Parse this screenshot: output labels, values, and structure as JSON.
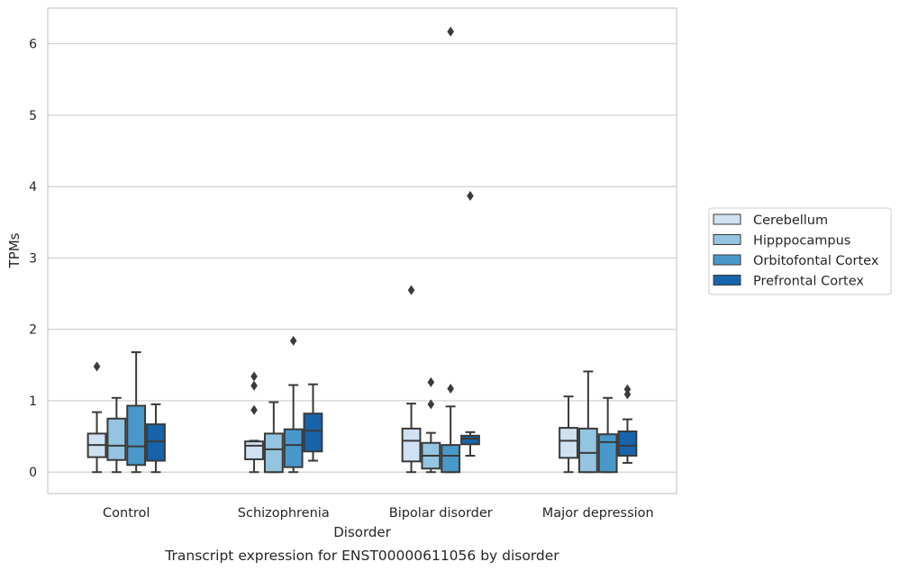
{
  "chart_data": {
    "type": "box",
    "title": "Transcript expression for ENST00000611056 by disorder",
    "xlabel": "Disorder",
    "ylabel": "TPMs",
    "ylim": [
      -0.3,
      6.5
    ],
    "yticks": [
      0,
      1,
      2,
      3,
      4,
      5,
      6
    ],
    "grid": "horizontal",
    "legend_position": "right-outside",
    "categories": [
      "Control",
      "Schizophrenia",
      "Bipolar disorder",
      "Major depression"
    ],
    "series": [
      {
        "name": "Cerebellum",
        "color": "#d0e1f2",
        "boxes": [
          {
            "whisker_low": 0.0,
            "q1": 0.21,
            "median": 0.38,
            "q3": 0.54,
            "whisker_high": 0.84,
            "outliers": [
              1.48
            ]
          },
          {
            "whisker_low": 0.0,
            "q1": 0.18,
            "median": 0.37,
            "q3": 0.43,
            "whisker_high": 0.44,
            "outliers": [
              0.87,
              1.21,
              1.34
            ]
          },
          {
            "whisker_low": 0.0,
            "q1": 0.15,
            "median": 0.44,
            "q3": 0.61,
            "whisker_high": 0.96,
            "outliers": [
              2.55
            ]
          },
          {
            "whisker_low": 0.0,
            "q1": 0.2,
            "median": 0.44,
            "q3": 0.62,
            "whisker_high": 1.06,
            "outliers": []
          }
        ]
      },
      {
        "name": "Hipppocampus",
        "color": "#94c4df",
        "boxes": [
          {
            "whisker_low": 0.0,
            "q1": 0.17,
            "median": 0.37,
            "q3": 0.75,
            "whisker_high": 1.04,
            "outliers": []
          },
          {
            "whisker_low": 0.0,
            "q1": 0.0,
            "median": 0.32,
            "q3": 0.54,
            "whisker_high": 0.98,
            "outliers": []
          },
          {
            "whisker_low": 0.0,
            "q1": 0.05,
            "median": 0.23,
            "q3": 0.41,
            "whisker_high": 0.55,
            "outliers": [
              0.95,
              1.26
            ]
          },
          {
            "whisker_low": 0.0,
            "q1": 0.0,
            "median": 0.27,
            "q3": 0.61,
            "whisker_high": 1.41,
            "outliers": []
          }
        ]
      },
      {
        "name": "Orbitofontal Cortex",
        "color": "#4a98c9",
        "boxes": [
          {
            "whisker_low": 0.0,
            "q1": 0.1,
            "median": 0.36,
            "q3": 0.93,
            "whisker_high": 1.68,
            "outliers": []
          },
          {
            "whisker_low": 0.0,
            "q1": 0.07,
            "median": 0.38,
            "q3": 0.6,
            "whisker_high": 1.22,
            "outliers": [
              1.84
            ]
          },
          {
            "whisker_low": 0.0,
            "q1": 0.0,
            "median": 0.23,
            "q3": 0.38,
            "whisker_high": 0.92,
            "outliers": [
              1.17,
              6.17
            ]
          },
          {
            "whisker_low": 0.0,
            "q1": 0.0,
            "median": 0.42,
            "q3": 0.53,
            "whisker_high": 1.04,
            "outliers": []
          }
        ]
      },
      {
        "name": "Prefrontal Cortex",
        "color": "#1764ab",
        "boxes": [
          {
            "whisker_low": 0.0,
            "q1": 0.16,
            "median": 0.43,
            "q3": 0.67,
            "whisker_high": 0.95,
            "outliers": []
          },
          {
            "whisker_low": 0.16,
            "q1": 0.29,
            "median": 0.58,
            "q3": 0.82,
            "whisker_high": 1.23,
            "outliers": []
          },
          {
            "whisker_low": 0.23,
            "q1": 0.39,
            "median": 0.47,
            "q3": 0.51,
            "whisker_high": 0.56,
            "outliers": [
              3.87
            ]
          },
          {
            "whisker_low": 0.13,
            "q1": 0.23,
            "median": 0.37,
            "q3": 0.57,
            "whisker_high": 0.74,
            "outliers": [
              1.09,
              1.16
            ]
          }
        ]
      }
    ]
  }
}
